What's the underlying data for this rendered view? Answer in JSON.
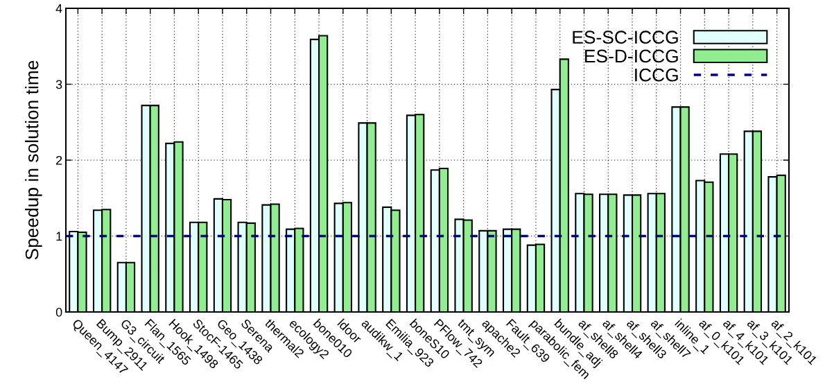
{
  "chart_data": {
    "type": "bar",
    "ylabel": "Speedup in solution time",
    "categories": [
      "Queen_4147",
      "Bump_2911",
      "G3_circuit",
      "Flan_1565",
      "Hook_1498",
      "StocF-1465",
      "Geo_1438",
      "Serena",
      "thermal2",
      "ecology2",
      "bone010",
      "ldoor",
      "audikw_1",
      "Emilia_923",
      "boneS10",
      "PFlow_742",
      "tmt_sym",
      "apache2",
      "Fault_639",
      "parabolic_fem",
      "bundle_adj",
      "af_shell8",
      "af_shell4",
      "af_shell3",
      "af_shell7",
      "inline_1",
      "af_0_k101",
      "af_4_k101",
      "af_3_k101",
      "af_2_k101"
    ],
    "series": [
      {
        "name": "ES-SC-ICCG",
        "color": "#e0ffff",
        "values": [
          1.06,
          1.34,
          0.65,
          2.72,
          2.22,
          1.18,
          1.49,
          1.18,
          1.41,
          1.09,
          3.59,
          1.43,
          2.49,
          1.38,
          2.59,
          1.87,
          1.22,
          1.07,
          1.09,
          0.88,
          2.93,
          1.56,
          1.55,
          1.54,
          1.56,
          2.7,
          1.73,
          2.08,
          2.38,
          1.78
        ]
      },
      {
        "name": "ES-D-ICCG",
        "color": "#90ee90",
        "values": [
          1.05,
          1.35,
          0.65,
          2.72,
          2.24,
          1.18,
          1.48,
          1.17,
          1.42,
          1.1,
          3.64,
          1.44,
          2.49,
          1.34,
          2.6,
          1.89,
          1.21,
          1.07,
          1.09,
          0.89,
          3.33,
          1.55,
          1.55,
          1.54,
          1.56,
          2.7,
          1.71,
          2.08,
          2.38,
          1.8
        ]
      }
    ],
    "ref_lines": [
      {
        "axis": "y",
        "value": 1,
        "label": "ICCG",
        "color": "#00008b",
        "line_style": "dashed"
      }
    ],
    "ylim": [
      0,
      4
    ],
    "yticks": [
      0,
      1,
      2,
      3,
      4
    ],
    "grid": true,
    "legend": "top right"
  }
}
